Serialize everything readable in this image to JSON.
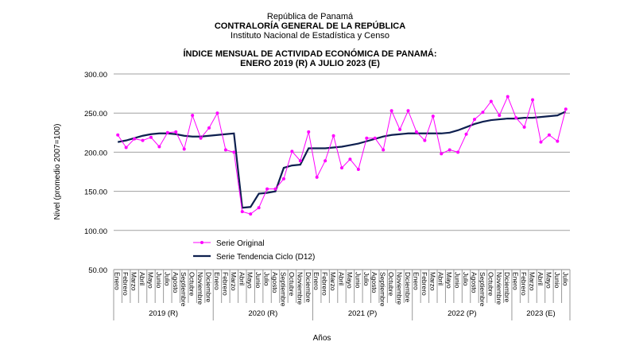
{
  "header": {
    "line1": "República de Panamá",
    "line2": "CONTRALORÍA GENERAL DE LA REPÚBLICA",
    "line3": "Instituto Nacional de Estadística y Censo"
  },
  "chart_data": {
    "type": "line",
    "title": "ÍNDICE MENSUAL DE ACTIVIDAD ECONÓMICA DE PANAMÁ:",
    "subtitle": "ENERO 2019 (R) A JULIO 2023 (E)",
    "xlabel": "Años",
    "ylabel": "Nivel (promedio 2007=100)",
    "ylim": [
      50,
      300
    ],
    "yticks": [
      "50.00",
      "100.00",
      "150.00",
      "200.00",
      "250.00",
      "300.00"
    ],
    "grid": true,
    "legend": "bottom-left",
    "years": [
      {
        "label": "2019 (R)",
        "months": 12
      },
      {
        "label": "2020 (R)",
        "months": 12
      },
      {
        "label": "2021 (P)",
        "months": 12
      },
      {
        "label": "2022 (P)",
        "months": 12
      },
      {
        "label": "2023 (E)",
        "months": 7
      }
    ],
    "months": [
      "Enero",
      "Febrero",
      "Marzo",
      "Abril",
      "Mayo",
      "Junio",
      "Julio",
      "Agosto",
      "Septiembre",
      "Octubre",
      "Noviembre",
      "Diciembre"
    ],
    "series": [
      {
        "name": "Serie Original",
        "color": "#ff00ff",
        "values": [
          222,
          206,
          217,
          215,
          219,
          207,
          225,
          226,
          204,
          247,
          218,
          231,
          250,
          203,
          200,
          124,
          121,
          129,
          153,
          153,
          166,
          201,
          189,
          226,
          168,
          189,
          221,
          180,
          191,
          178,
          218,
          218,
          203,
          253,
          229,
          253,
          226,
          215,
          246,
          198,
          203,
          200,
          223,
          242,
          251,
          265,
          247,
          271,
          244,
          232,
          267,
          213,
          222,
          214,
          255
        ]
      },
      {
        "name": "Serie Tendencia Ciclo (D12)",
        "color": "#0d1f4f",
        "values": [
          213,
          215,
          218,
          221,
          223,
          224,
          224,
          223,
          221,
          220,
          220,
          221,
          222,
          223,
          224,
          129,
          130,
          147,
          148,
          150,
          180,
          183,
          184,
          205,
          205,
          205,
          206,
          207,
          209,
          211,
          214,
          217,
          220,
          222,
          223,
          224,
          224,
          224,
          224,
          224,
          225,
          228,
          232,
          236,
          239,
          241,
          242,
          243,
          243,
          244,
          244,
          245,
          246,
          247,
          252
        ]
      }
    ]
  }
}
